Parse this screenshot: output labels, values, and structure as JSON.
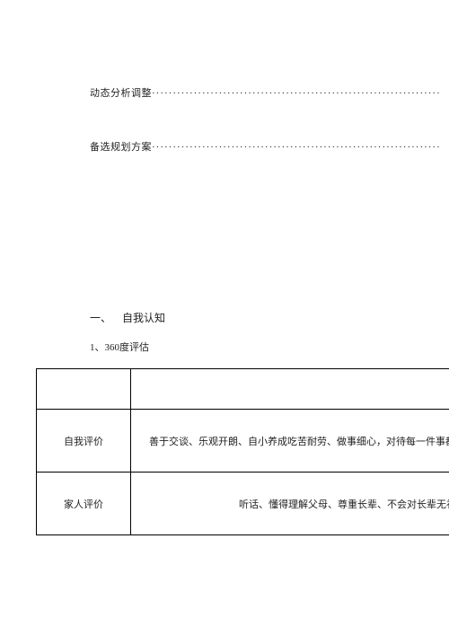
{
  "toc": {
    "line1_label": "动态分析调整",
    "line1_dots": "·····································································",
    "line2_label": "备选规划方案",
    "line2_dots": "·····································································"
  },
  "section": {
    "number": "一、",
    "title": "自我认知"
  },
  "subsection": {
    "title": "1、360度评估"
  },
  "table": {
    "header_col1": "",
    "header_col2": "",
    "row1_label": "自我评价",
    "row1_content": "善于交谈、乐观开朗、自小养成吃苦耐劳、做事细心，对待每一件事都认",
    "row2_label": "家人评价",
    "row2_content": "听话、懂得理解父母、尊重长辈、不会对长辈无礼，"
  },
  "colors": {
    "text": "#222222",
    "border": "#000000",
    "background": "#ffffff"
  }
}
